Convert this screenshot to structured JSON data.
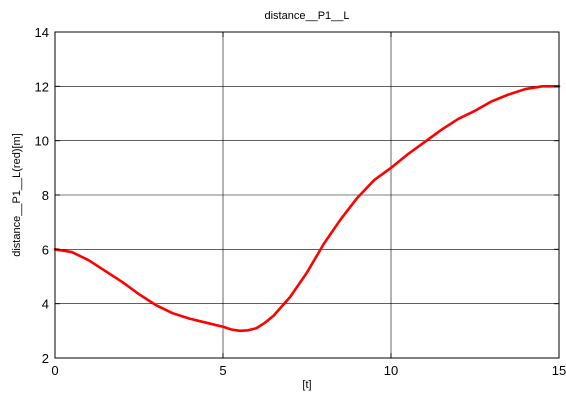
{
  "chart_data": {
    "type": "line",
    "title": "distance__P1__L",
    "xlabel": "[t]",
    "ylabel": "distance__P1__L(red)[m]",
    "xlim": [
      0,
      15
    ],
    "ylim": [
      2,
      14
    ],
    "xticks": [
      0,
      5,
      10,
      15
    ],
    "yticks": [
      2,
      4,
      6,
      8,
      10,
      12,
      14
    ],
    "grid": true,
    "series": [
      {
        "color": "#ff0000",
        "x": [
          0,
          0.5,
          1,
          1.5,
          2,
          2.5,
          3,
          3.5,
          4,
          4.5,
          5,
          5.25,
          5.5,
          5.75,
          6,
          6.25,
          6.5,
          7,
          7.5,
          8,
          8.5,
          9,
          9.5,
          10,
          10.5,
          11,
          11.5,
          12,
          12.5,
          13,
          13.5,
          14,
          14.5,
          15
        ],
        "y": [
          6.0,
          5.9,
          5.6,
          5.2,
          4.8,
          4.35,
          3.95,
          3.65,
          3.45,
          3.3,
          3.15,
          3.05,
          3.0,
          3.02,
          3.1,
          3.3,
          3.55,
          4.25,
          5.15,
          6.2,
          7.1,
          7.9,
          8.55,
          9.0,
          9.5,
          9.95,
          10.4,
          10.8,
          11.1,
          11.45,
          11.7,
          11.9,
          12.0,
          12.0
        ]
      }
    ]
  }
}
